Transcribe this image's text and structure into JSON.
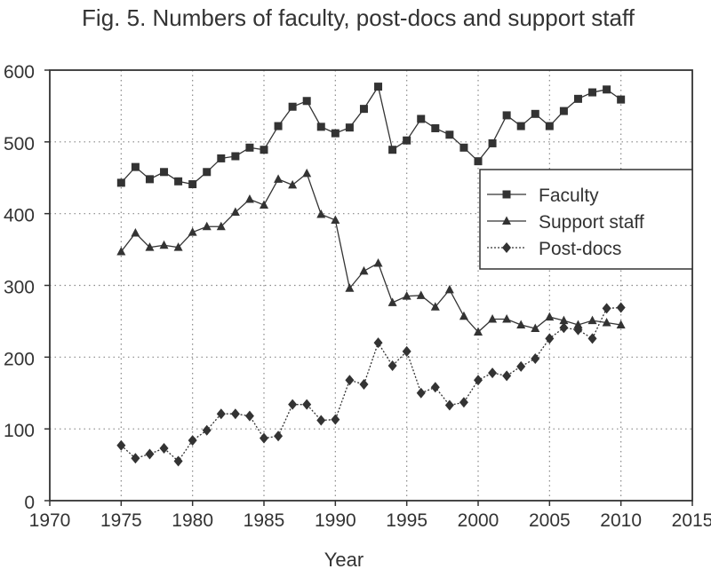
{
  "chart_data": {
    "type": "line",
    "title": "Fig. 5.  Numbers of faculty, post-docs and support staff",
    "xlabel": "Year",
    "ylabel": "",
    "xlim": [
      1970,
      2015
    ],
    "ylim": [
      0,
      600
    ],
    "xticks": [
      1970,
      1975,
      1980,
      1985,
      1990,
      1995,
      2000,
      2005,
      2010,
      2015
    ],
    "yticks": [
      0,
      100,
      200,
      300,
      400,
      500,
      600
    ],
    "grid": true,
    "legend_position": "right",
    "series": [
      {
        "name": "Faculty",
        "marker": "square",
        "line": "solid",
        "x": [
          1975,
          1976,
          1977,
          1978,
          1979,
          1980,
          1981,
          1982,
          1983,
          1984,
          1985,
          1986,
          1987,
          1988,
          1989,
          1990,
          1991,
          1992,
          1993,
          1994,
          1995,
          1996,
          1997,
          1998,
          1999,
          2000,
          2001,
          2002,
          2003,
          2004,
          2005,
          2006,
          2007,
          2008,
          2009,
          2010
        ],
        "values": [
          443,
          465,
          448,
          458,
          445,
          441,
          458,
          477,
          480,
          492,
          489,
          522,
          549,
          557,
          521,
          512,
          520,
          546,
          577,
          489,
          502,
          532,
          519,
          510,
          492,
          473,
          498,
          537,
          522,
          539,
          522,
          543,
          560,
          569,
          573,
          559
        ]
      },
      {
        "name": "Support staff",
        "marker": "triangle",
        "line": "solid",
        "x": [
          1975,
          1976,
          1977,
          1978,
          1979,
          1980,
          1981,
          1982,
          1983,
          1984,
          1985,
          1986,
          1987,
          1988,
          1989,
          1990,
          1991,
          1992,
          1993,
          1994,
          1995,
          1996,
          1997,
          1998,
          1999,
          2000,
          2001,
          2002,
          2003,
          2004,
          2005,
          2006,
          2007,
          2008,
          2009,
          2010
        ],
        "values": [
          347,
          373,
          353,
          356,
          353,
          374,
          382,
          382,
          402,
          420,
          412,
          448,
          440,
          456,
          399,
          391,
          296,
          320,
          331,
          276,
          285,
          286,
          270,
          294,
          257,
          235,
          253,
          253,
          245,
          240,
          256,
          251,
          245,
          251,
          248,
          245
        ]
      },
      {
        "name": "Post-docs",
        "marker": "diamond",
        "line": "dotted",
        "x": [
          1975,
          1976,
          1977,
          1978,
          1979,
          1980,
          1981,
          1982,
          1983,
          1984,
          1985,
          1986,
          1987,
          1988,
          1989,
          1990,
          1991,
          1992,
          1993,
          1994,
          1995,
          1996,
          1997,
          1998,
          1999,
          2000,
          2001,
          2002,
          2003,
          2004,
          2005,
          2006,
          2007,
          2008,
          2009,
          2010
        ],
        "values": [
          77,
          59,
          65,
          73,
          55,
          84,
          98,
          121,
          121,
          118,
          87,
          90,
          134,
          134,
          112,
          113,
          168,
          162,
          220,
          188,
          208,
          150,
          158,
          133,
          137,
          168,
          178,
          174,
          187,
          198,
          226,
          241,
          238,
          226,
          268,
          269
        ]
      }
    ]
  }
}
